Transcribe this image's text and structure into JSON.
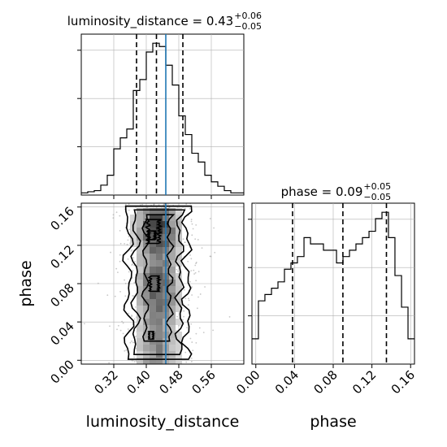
{
  "chart_data": {
    "type": "corner",
    "truth_color": "#1f77b4",
    "panels": {
      "luminosity_distance_hist": {
        "type": "histogram",
        "title_param": "luminosity_distance",
        "title_median": "0.43",
        "title_plus": "+0.06",
        "title_minus": "−0.05",
        "x_range": [
          0.24,
          0.64
        ],
        "bin_edges": [
          0.24,
          0.256,
          0.272,
          0.288,
          0.304,
          0.32,
          0.336,
          0.352,
          0.368,
          0.384,
          0.4,
          0.416,
          0.432,
          0.448,
          0.464,
          0.48,
          0.496,
          0.512,
          0.528,
          0.544,
          0.56,
          0.576,
          0.592,
          0.608,
          0.624,
          0.64
        ],
        "counts": [
          2,
          3,
          4,
          9,
          18,
          42,
          52,
          60,
          95,
          105,
          130,
          138,
          135,
          118,
          100,
          72,
          55,
          38,
          30,
          18,
          12,
          8,
          4,
          2,
          2
        ],
        "quantiles": [
          0.376,
          0.425,
          0.49
        ],
        "truth": 0.448
      },
      "phase_hist": {
        "type": "histogram",
        "title_param": "phase",
        "title_median": "0.09",
        "title_plus": "+0.05",
        "title_minus": "−0.05",
        "x_range": [
          -0.004,
          0.164
        ],
        "x_ticks": [
          "0.00",
          "0.04",
          "0.08",
          "0.12",
          "0.16"
        ],
        "x_tick_values": [
          0.0,
          0.04,
          0.08,
          0.12,
          0.16
        ],
        "xlabel": "phase",
        "bin_edges": [
          -0.004,
          0.0027,
          0.0094,
          0.0162,
          0.0229,
          0.0296,
          0.0363,
          0.043,
          0.0498,
          0.0565,
          0.0632,
          0.0699,
          0.0766,
          0.0834,
          0.0901,
          0.0968,
          0.1035,
          0.1102,
          0.117,
          0.1237,
          0.1304,
          0.1371,
          0.1438,
          0.1506,
          0.1573,
          0.164
        ],
        "counts": [
          28,
          70,
          77,
          84,
          91,
          105,
          112,
          119,
          140,
          133,
          133,
          126,
          126,
          112,
          119,
          126,
          133,
          140,
          147,
          161,
          168,
          140,
          98,
          63,
          28
        ],
        "quantiles": [
          0.038,
          0.09,
          0.135
        ]
      },
      "joint": {
        "type": "2d-histogram-contour",
        "x_param": "luminosity_distance",
        "y_param": "phase",
        "xlabel": "luminosity_distance",
        "ylabel": "phase",
        "x_range": [
          0.24,
          0.64
        ],
        "y_range": [
          -0.004,
          0.164
        ],
        "x_ticks": [
          "0.32",
          "0.40",
          "0.48",
          "0.56"
        ],
        "x_tick_values": [
          0.32,
          0.4,
          0.48,
          0.56
        ],
        "y_ticks": [
          "0.00",
          "0.04",
          "0.08",
          "0.12",
          "0.16"
        ],
        "y_tick_values": [
          0.0,
          0.04,
          0.08,
          0.12,
          0.16
        ],
        "truth_x": 0.448
      }
    }
  }
}
